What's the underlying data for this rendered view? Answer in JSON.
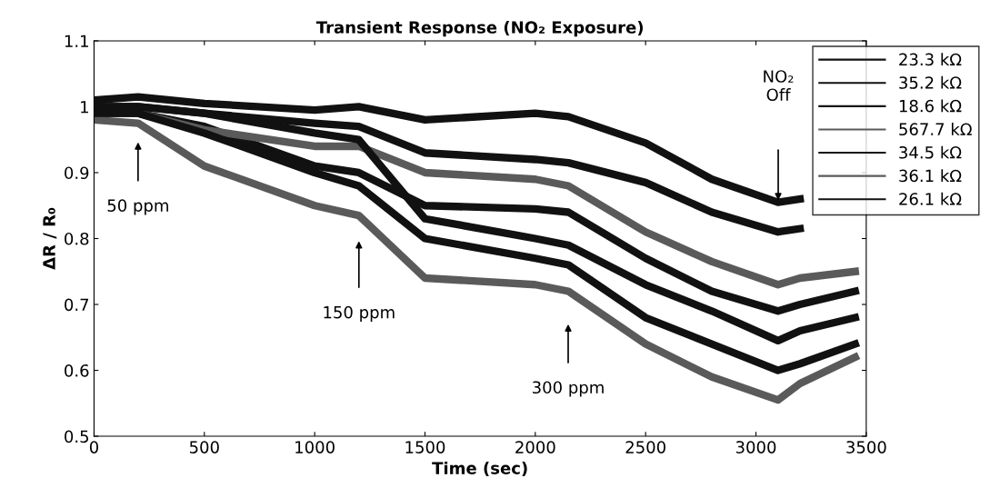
{
  "chart_data": {
    "type": "line",
    "title": "Transient Response (NO₂ Exposure)",
    "xlabel": "Time (sec)",
    "ylabel": "ΔR / R₀",
    "x": [
      0,
      200,
      500,
      1000,
      1200,
      1500,
      2000,
      2150,
      2500,
      2800,
      3100,
      3200,
      3450
    ],
    "series": [
      {
        "name": "23.3 kΩ",
        "color": "#111111",
        "values": [
          1.01,
          1.015,
          1.005,
          0.995,
          1.0,
          0.98,
          0.99,
          0.985,
          0.945,
          0.89,
          0.855,
          0.86,
          null
        ]
      },
      {
        "name": "35.2 kΩ",
        "color": "#111111",
        "values": [
          1.0,
          1.0,
          0.99,
          0.975,
          0.97,
          0.93,
          0.92,
          0.915,
          0.885,
          0.84,
          0.81,
          0.815,
          null
        ]
      },
      {
        "name": "18.6 kΩ",
        "color": "#111111",
        "values": [
          0.99,
          0.99,
          0.97,
          0.91,
          0.9,
          0.85,
          0.845,
          0.84,
          0.77,
          0.72,
          0.69,
          0.7,
          0.72
        ]
      },
      {
        "name": "567.7 kΩ",
        "color": "#5a5a5a",
        "values": [
          0.99,
          0.99,
          0.965,
          0.94,
          0.94,
          0.9,
          0.89,
          0.88,
          0.81,
          0.765,
          0.73,
          0.74,
          0.75
        ]
      },
      {
        "name": "34.5 kΩ",
        "color": "#111111",
        "values": [
          1.0,
          1.0,
          0.99,
          0.96,
          0.95,
          0.83,
          0.8,
          0.79,
          0.73,
          0.69,
          0.645,
          0.66,
          0.68
        ]
      },
      {
        "name": "36.1 kΩ",
        "color": "#5a5a5a",
        "values": [
          0.98,
          0.975,
          0.91,
          0.85,
          0.835,
          0.74,
          0.73,
          0.72,
          0.64,
          0.59,
          0.555,
          0.58,
          0.62
        ]
      },
      {
        "name": "26.1 kΩ",
        "color": "#111111",
        "values": [
          0.99,
          0.99,
          0.96,
          0.9,
          0.88,
          0.8,
          0.77,
          0.76,
          0.68,
          0.64,
          0.6,
          0.61,
          0.64
        ]
      }
    ],
    "xlim": [
      0,
      3500
    ],
    "xticks": [
      0,
      500,
      1000,
      1500,
      2000,
      2500,
      3000,
      3500
    ],
    "ylim": [
      0.5,
      1.1
    ],
    "yticks": [
      0.5,
      0.6,
      0.7,
      0.8,
      0.9,
      1,
      1.1
    ],
    "grid": false,
    "legend": "top right",
    "marker": "none",
    "line_style": "solid",
    "annotations": [
      "50 ppm",
      "150 ppm",
      "300 ppm",
      "NO₂\nOff"
    ]
  }
}
